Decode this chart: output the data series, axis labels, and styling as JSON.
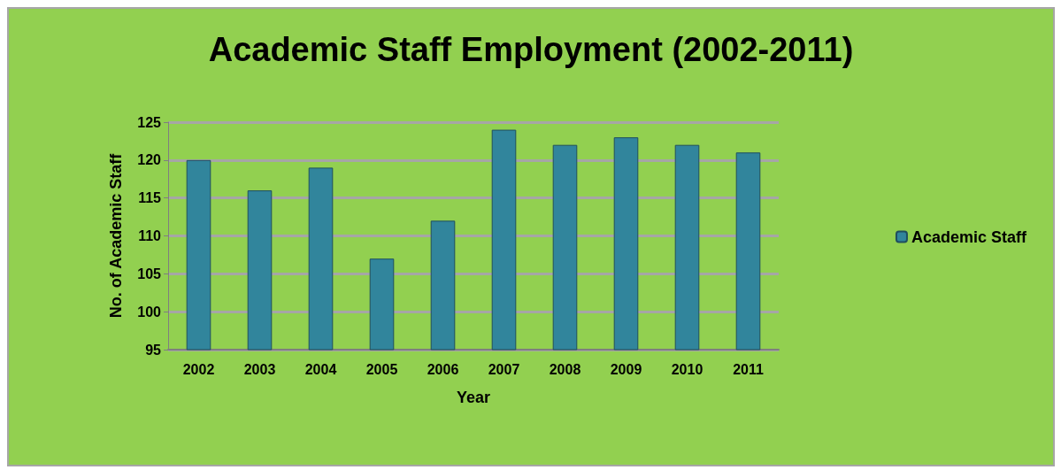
{
  "chart_data": {
    "type": "bar",
    "title": "Academic Staff Employment (2002-2011)",
    "xlabel": "Year",
    "ylabel": "No. of Academic Staff",
    "categories": [
      "2002",
      "2003",
      "2004",
      "2005",
      "2006",
      "2007",
      "2008",
      "2009",
      "2010",
      "2011"
    ],
    "series": [
      {
        "name": "Academic Staff",
        "color": "#31859c",
        "values": [
          120,
          116,
          119,
          107,
          112,
          124,
          122,
          123,
          122,
          121
        ]
      }
    ],
    "ylim": [
      95,
      125
    ],
    "yticks": [
      95,
      100,
      105,
      110,
      115,
      120,
      125
    ],
    "grid": "y",
    "legend": "right"
  }
}
